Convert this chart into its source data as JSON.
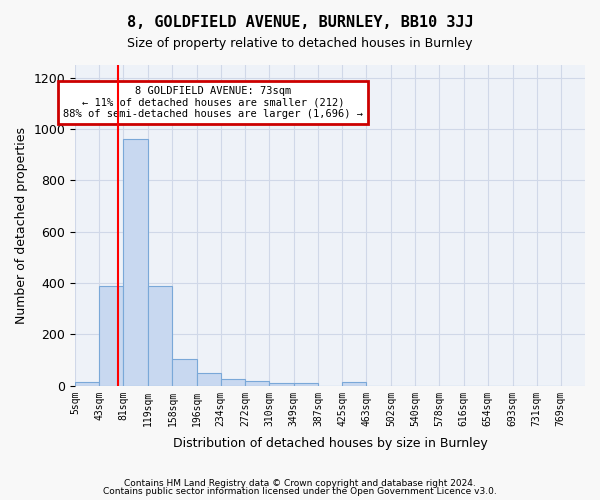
{
  "title_line1": "8, GOLDFIELD AVENUE, BURNLEY, BB10 3JJ",
  "title_line2": "Size of property relative to detached houses in Burnley",
  "xlabel": "Distribution of detached houses by size in Burnley",
  "ylabel": "Number of detached properties",
  "footnote1": "Contains HM Land Registry data © Crown copyright and database right 2024.",
  "footnote2": "Contains public sector information licensed under the Open Government Licence v3.0.",
  "bin_labels": [
    "5sqm",
    "43sqm",
    "81sqm",
    "119sqm",
    "158sqm",
    "196sqm",
    "234sqm",
    "272sqm",
    "310sqm",
    "349sqm",
    "387sqm",
    "425sqm",
    "463sqm",
    "502sqm",
    "540sqm",
    "578sqm",
    "616sqm",
    "654sqm",
    "693sqm",
    "731sqm",
    "769sqm"
  ],
  "bin_edges": [
    5,
    43,
    81,
    119,
    158,
    196,
    234,
    272,
    310,
    349,
    387,
    425,
    463,
    502,
    540,
    578,
    616,
    654,
    693,
    731,
    769
  ],
  "bar_heights": [
    15,
    390,
    960,
    390,
    105,
    50,
    25,
    20,
    10,
    10,
    0,
    15,
    0,
    0,
    0,
    0,
    0,
    0,
    0,
    0
  ],
  "bar_color": "#c8d8f0",
  "bar_edge_color": "#7aa8d8",
  "grid_color": "#d0d8e8",
  "background_color": "#eef2f8",
  "red_line_x": 73,
  "annotation_text_line1": "8 GOLDFIELD AVENUE: 73sqm",
  "annotation_text_line2": "← 11% of detached houses are smaller (212)",
  "annotation_text_line3": "88% of semi-detached houses are larger (1,696) →",
  "annotation_box_color": "#ffffff",
  "annotation_box_edge": "#cc0000",
  "ylim": [
    0,
    1250
  ],
  "yticks": [
    0,
    200,
    400,
    600,
    800,
    1000,
    1200
  ]
}
